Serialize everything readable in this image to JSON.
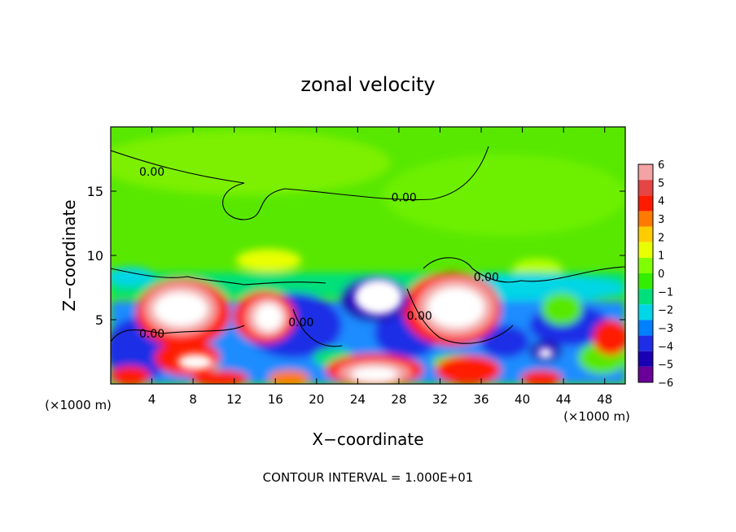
{
  "chart_data": {
    "type": "heatmap",
    "title": "zonal velocity",
    "xlabel": "X−coordinate",
    "ylabel": "Z−coordinate",
    "x_unit_left": "(×1000 m)",
    "x_unit_right": "(×1000 m)",
    "footer": "CONTOUR INTERVAL = 1.000E+01",
    "xlim": [
      0,
      50
    ],
    "ylim": [
      0,
      20
    ],
    "x_ticks": [
      "4",
      "8",
      "12",
      "16",
      "20",
      "24",
      "28",
      "32",
      "36",
      "40",
      "44",
      "48"
    ],
    "y_ticks": [
      "5",
      "10",
      "15"
    ],
    "colorbar": {
      "range": [
        -6,
        6
      ],
      "ticks": [
        "6",
        "5",
        "4",
        "3",
        "2",
        "1",
        "0",
        "−1",
        "−2",
        "−3",
        "−4",
        "−5",
        "−6"
      ],
      "colors": [
        "#f2a3a3",
        "#e54545",
        "#ff1a00",
        "#ff7a00",
        "#ffcc00",
        "#e8ff00",
        "#80ff00",
        "#33ee00",
        "#00e07a",
        "#00d6e6",
        "#0080ff",
        "#1f2ee6",
        "#1a00b3",
        "#6a0099"
      ]
    },
    "contour_labels": [
      {
        "text": "0.00",
        "x": 4,
        "z": 16.2
      },
      {
        "text": "0.00",
        "x": 28.5,
        "z": 14.2
      },
      {
        "text": "0.00",
        "x": 36.5,
        "z": 8.0
      },
      {
        "text": "0.00",
        "x": 4,
        "z": 3.6
      },
      {
        "text": "0.00",
        "x": 18.5,
        "z": 4.5
      },
      {
        "text": "0.00",
        "x": 30,
        "z": 5.0
      }
    ],
    "grid": false
  }
}
